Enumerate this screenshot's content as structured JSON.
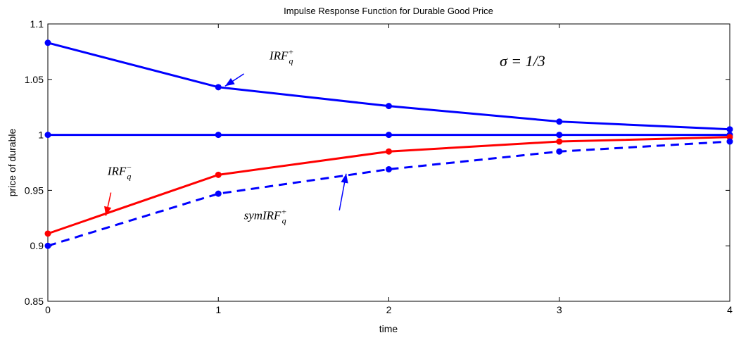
{
  "chart_data": {
    "type": "line",
    "title": "Impulse Response Function for Durable Good Price",
    "xlabel": "time",
    "ylabel": "price of durable",
    "xlim": [
      0,
      4
    ],
    "ylim": [
      0.85,
      1.1
    ],
    "x": [
      0,
      1,
      2,
      3,
      4
    ],
    "x_ticks": [
      "0",
      "1",
      "2",
      "3",
      "4"
    ],
    "y_ticks": [
      "0.85",
      "0.9",
      "0.95",
      "1",
      "1.05",
      "1.1"
    ],
    "grid": false,
    "series": [
      {
        "color": "#0000ff",
        "style": "solid",
        "values": [
          1.083,
          1.043,
          1.026,
          1.012,
          1.005
        ]
      },
      {
        "color": "#0000ff",
        "style": "solid",
        "values": [
          1.0,
          1.0,
          1.0,
          1.0,
          1.0
        ]
      },
      {
        "color": "#ff0000",
        "style": "solid",
        "values": [
          0.911,
          0.964,
          0.985,
          0.994,
          0.998
        ]
      },
      {
        "color": "#0000ff",
        "style": "dashed",
        "values": [
          0.9,
          0.947,
          0.969,
          0.985,
          0.994
        ]
      }
    ],
    "annotations": [
      {
        "base": "IRF",
        "sub": "q",
        "sup": "+",
        "at": [
          1.3,
          1.068
        ],
        "color": "#000000"
      },
      {
        "base": "IRF",
        "sub": "q",
        "sup": "−",
        "at": [
          0.35,
          0.964
        ],
        "color": "#000000"
      },
      {
        "base": "symIRF",
        "sub": "q",
        "sup": "+",
        "at": [
          1.15,
          0.924
        ],
        "color": "#000000"
      },
      {
        "text": "σ = 1/3",
        "at": [
          2.65,
          1.062
        ],
        "color": "#000000"
      }
    ],
    "arrows": [
      {
        "from": [
          1.15,
          1.055
        ],
        "to": [
          1.04,
          1.044
        ],
        "color": "#0000ff"
      },
      {
        "from": [
          0.37,
          0.948
        ],
        "to": [
          0.34,
          0.927
        ],
        "color": "#ff0000"
      },
      {
        "from": [
          1.71,
          0.932
        ],
        "to": [
          1.75,
          0.965
        ],
        "color": "#0000ff"
      }
    ]
  }
}
